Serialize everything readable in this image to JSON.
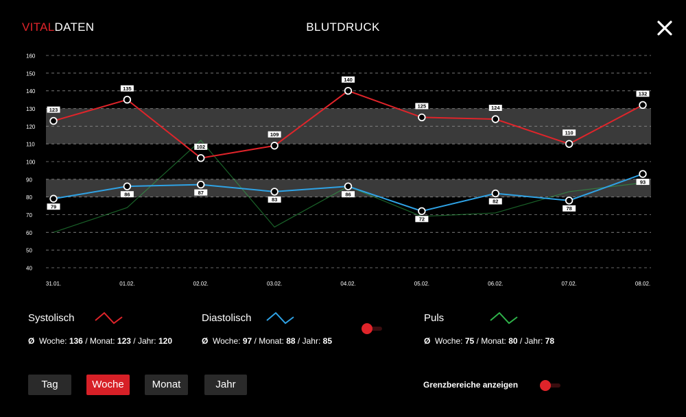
{
  "header": {
    "logo_part1": "VITAL",
    "logo_part2": "DATEN",
    "title": "BLUTDRUCK",
    "close_icon": "close-icon"
  },
  "colors": {
    "systolic": "#e0242a",
    "diastolic": "#2fa3e6",
    "pulse": "#2fb34a",
    "band": "#3a3a3a",
    "accent": "#d72027"
  },
  "chart_data": {
    "type": "line",
    "categories": [
      "31.01.",
      "01.02.",
      "02.02.",
      "03.02.",
      "04.02.",
      "05.02.",
      "06.02.",
      "07.02.",
      "08.02."
    ],
    "ylim": [
      40,
      160
    ],
    "yticks": [
      40,
      50,
      60,
      70,
      80,
      90,
      100,
      110,
      120,
      130,
      140,
      150,
      160
    ],
    "grid": true,
    "reference_bands": [
      {
        "from": 110,
        "to": 130
      },
      {
        "from": 80,
        "to": 90
      }
    ],
    "series": [
      {
        "name": "Systolisch",
        "values": [
          123,
          135,
          102,
          109,
          140,
          125,
          124,
          110,
          132
        ]
      },
      {
        "name": "Diastolisch",
        "values": [
          79,
          86,
          87,
          83,
          86,
          72,
          82,
          78,
          93
        ]
      },
      {
        "name": "Puls",
        "values": [
          60,
          74,
          112,
          63,
          86,
          69,
          71,
          83,
          88
        ]
      }
    ]
  },
  "legend": {
    "systolic": {
      "label": "Systolisch",
      "avg_symbol": "Ø",
      "week_label": "Woche:",
      "week_value": "136",
      "month_label": "Monat:",
      "month_value": "123",
      "year_label": "Jahr:",
      "year_value": "120"
    },
    "diastolic": {
      "label": "Diastolisch",
      "avg_symbol": "Ø",
      "week_label": "Woche:",
      "week_value": "97",
      "month_label": "Monat:",
      "month_value": "88",
      "year_label": "Jahr:",
      "year_value": "85"
    },
    "pulse": {
      "label": "Puls",
      "avg_symbol": "Ø",
      "week_label": "Woche:",
      "week_value": "75",
      "month_label": "Monat:",
      "month_value": "80",
      "year_label": "Jahr:",
      "year_value": "78"
    }
  },
  "period_buttons": [
    {
      "label": "Tag",
      "active": false
    },
    {
      "label": "Woche",
      "active": true
    },
    {
      "label": "Monat",
      "active": false
    },
    {
      "label": "Jahr",
      "active": false
    }
  ],
  "limits_toggle": {
    "label": "Grenzbereiche anzeigen",
    "on": true
  }
}
